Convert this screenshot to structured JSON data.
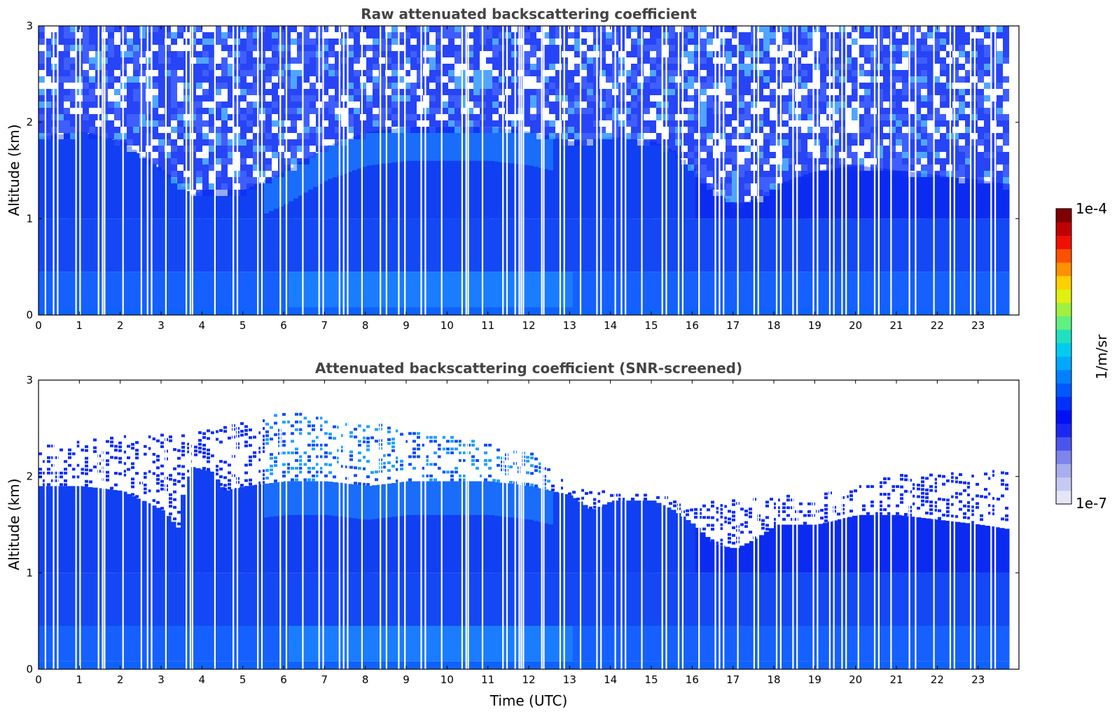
{
  "chart_data": [
    {
      "type": "heatmap",
      "title": "Raw attenuated backscattering coefficient",
      "xlabel": "",
      "ylabel": "Altitude (km)",
      "xlim": [
        0,
        24
      ],
      "ylim": [
        0,
        3
      ],
      "x_ticks": [
        "0",
        "1",
        "2",
        "3",
        "4",
        "5",
        "6",
        "7",
        "8",
        "9",
        "10",
        "11",
        "12",
        "13",
        "14",
        "15",
        "16",
        "17",
        "18",
        "19",
        "20",
        "21",
        "22",
        "23"
      ],
      "y_ticks": [
        "0",
        "1",
        "2",
        "3"
      ],
      "data_end_hour": 23.75,
      "noise_floor_km": [
        [
          0,
          1.85
        ],
        [
          1,
          1.9
        ],
        [
          2,
          1.8
        ],
        [
          3,
          1.5
        ],
        [
          3.7,
          1.25
        ],
        [
          4,
          1.3
        ],
        [
          5,
          1.3
        ],
        [
          6,
          1.5
        ],
        [
          7,
          1.75
        ],
        [
          8,
          1.9
        ],
        [
          9,
          1.95
        ],
        [
          10,
          1.95
        ],
        [
          11,
          1.95
        ],
        [
          12,
          1.9
        ],
        [
          13,
          1.8
        ],
        [
          14,
          1.85
        ],
        [
          15,
          1.8
        ],
        [
          15.5,
          1.7
        ],
        [
          16,
          1.5
        ],
        [
          16.5,
          1.3
        ],
        [
          17,
          1.15
        ],
        [
          17.5,
          1.2
        ],
        [
          18,
          1.35
        ],
        [
          19,
          1.5
        ],
        [
          20,
          1.55
        ],
        [
          21,
          1.5
        ],
        [
          22,
          1.45
        ],
        [
          23,
          1.4
        ],
        [
          23.75,
          1.35
        ]
      ],
      "gap_times_h": [
        0.15,
        0.35,
        0.45,
        0.9,
        1.0,
        1.45,
        1.55,
        1.6,
        2.05,
        2.5,
        2.65,
        2.75,
        3.1,
        3.6,
        3.7,
        3.75,
        4.3,
        4.75,
        4.85,
        5.35,
        5.45,
        5.9,
        6.05,
        6.45,
        6.85,
        6.95,
        7.35,
        7.45,
        7.55,
        7.9,
        8.35,
        8.5,
        8.8,
        8.95,
        9.35,
        9.45,
        9.85,
        10.35,
        10.45,
        10.5,
        10.85,
        11.35,
        11.45,
        11.65,
        11.75,
        11.8,
        11.85,
        12.3,
        12.35,
        12.75,
        12.85,
        13.25,
        13.65,
        13.75,
        14.1,
        14.25,
        14.35,
        14.75,
        15.25,
        15.35,
        15.65,
        15.75,
        16.15,
        16.55,
        16.65,
        16.75,
        17.1,
        17.5,
        17.6,
        18.05,
        18.15,
        18.45,
        18.55,
        18.95,
        19.05,
        19.35,
        19.45,
        19.65,
        19.75,
        20.05,
        20.45,
        20.55,
        20.85,
        21.3,
        21.45,
        21.9,
        22.3,
        22.4,
        22.8,
        22.9,
        23.3,
        23.4
      ]
    },
    {
      "type": "heatmap",
      "title": "Attenuated backscattering coefficient (SNR-screened)",
      "xlabel": "Time (UTC)",
      "ylabel": "Altitude (km)",
      "xlim": [
        0,
        24
      ],
      "ylim": [
        0,
        3
      ],
      "x_ticks": [
        "0",
        "1",
        "2",
        "3",
        "4",
        "5",
        "6",
        "7",
        "8",
        "9",
        "10",
        "11",
        "12",
        "13",
        "14",
        "15",
        "16",
        "17",
        "18",
        "19",
        "20",
        "21",
        "22",
        "23"
      ],
      "y_ticks": [
        "0",
        "1",
        "2",
        "3"
      ],
      "data_end_hour": 23.75,
      "boundary_layer_top_km": [
        [
          0,
          1.9
        ],
        [
          1,
          1.9
        ],
        [
          2,
          1.85
        ],
        [
          3,
          1.65
        ],
        [
          3.4,
          1.45
        ],
        [
          3.5,
          1.9
        ],
        [
          3.7,
          2.1
        ],
        [
          4.2,
          2.05
        ],
        [
          4.5,
          1.85
        ],
        [
          5,
          1.9
        ],
        [
          6,
          1.95
        ],
        [
          7,
          1.95
        ],
        [
          8,
          1.9
        ],
        [
          9,
          1.95
        ],
        [
          10,
          1.95
        ],
        [
          11,
          1.95
        ],
        [
          12,
          1.9
        ],
        [
          13,
          1.8
        ],
        [
          13.5,
          1.65
        ],
        [
          14,
          1.75
        ],
        [
          15,
          1.75
        ],
        [
          15.5,
          1.65
        ],
        [
          16,
          1.5
        ],
        [
          16.5,
          1.3
        ],
        [
          17,
          1.25
        ],
        [
          17.5,
          1.35
        ],
        [
          18,
          1.5
        ],
        [
          19,
          1.5
        ],
        [
          19.5,
          1.55
        ],
        [
          20,
          1.6
        ],
        [
          21,
          1.6
        ],
        [
          22,
          1.55
        ],
        [
          23,
          1.5
        ],
        [
          23.75,
          1.45
        ]
      ],
      "aerosol_top_km": [
        [
          0,
          2.3
        ],
        [
          2,
          2.4
        ],
        [
          4,
          2.45
        ],
        [
          6,
          2.65
        ],
        [
          8,
          2.55
        ],
        [
          10,
          2.4
        ],
        [
          12,
          2.25
        ],
        [
          13,
          1.85
        ],
        [
          15,
          1.8
        ],
        [
          16,
          1.7
        ],
        [
          17,
          1.75
        ],
        [
          19,
          1.8
        ],
        [
          21,
          2.0
        ],
        [
          23.75,
          2.05
        ]
      ],
      "gap_times_h": [
        0.15,
        0.35,
        0.45,
        0.9,
        1.0,
        1.45,
        1.55,
        1.6,
        2.05,
        2.5,
        2.65,
        2.75,
        3.1,
        3.6,
        3.7,
        3.75,
        4.3,
        4.75,
        4.85,
        5.35,
        5.45,
        5.9,
        6.05,
        6.45,
        6.85,
        6.95,
        7.35,
        7.45,
        7.55,
        7.9,
        8.35,
        8.5,
        8.8,
        8.95,
        9.35,
        9.45,
        9.85,
        10.35,
        10.45,
        10.5,
        10.85,
        11.35,
        11.45,
        11.65,
        11.75,
        11.8,
        11.85,
        12.3,
        12.35,
        12.75,
        12.85,
        13.25,
        13.65,
        13.75,
        14.1,
        14.25,
        14.35,
        14.75,
        15.25,
        15.35,
        15.65,
        15.75,
        16.15,
        16.55,
        16.65,
        16.75,
        17.1,
        17.5,
        17.6,
        18.05,
        18.15,
        18.45,
        18.55,
        18.95,
        19.05,
        19.35,
        19.45,
        19.65,
        19.75,
        20.05,
        20.45,
        20.55,
        20.85,
        21.3,
        21.45,
        21.9,
        22.3,
        22.4,
        22.8,
        22.9,
        23.3,
        23.4
      ]
    }
  ],
  "colorbar": {
    "label": "1/m/sr",
    "max_label": "1e-4",
    "min_label": "1e-7",
    "scale": "log",
    "range": [
      1e-07,
      0.0001
    ],
    "colors": [
      "#e4e6f8",
      "#c6caf2",
      "#a8aeee",
      "#7d85ec",
      "#4a55ee",
      "#1a28f2",
      "#0010f5",
      "#0030fb",
      "#0058ff",
      "#0080ff",
      "#00a8ff",
      "#00ccf0",
      "#20e0c0",
      "#60f080",
      "#a0f040",
      "#e0f010",
      "#ffd000",
      "#ff9000",
      "#ff5000",
      "#f01000",
      "#c00000",
      "#800000"
    ]
  }
}
